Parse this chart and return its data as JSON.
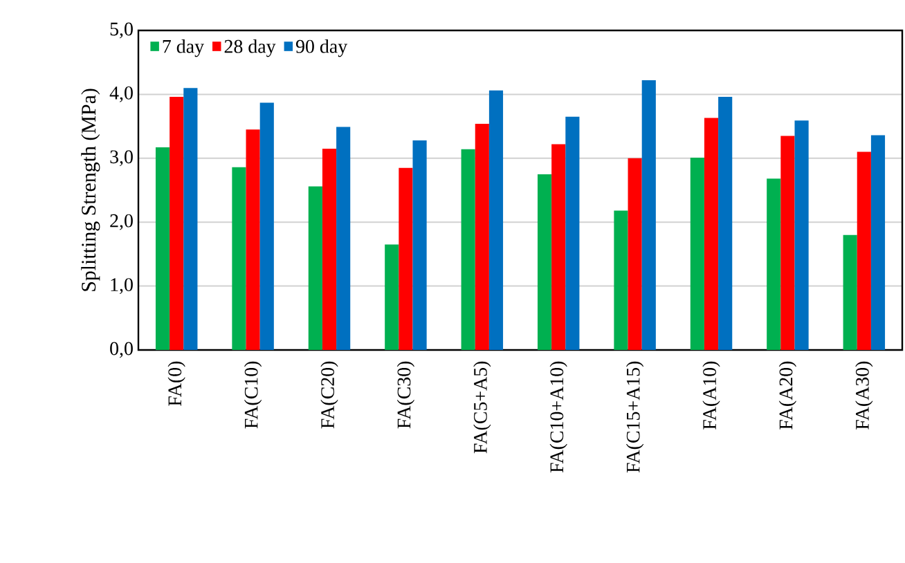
{
  "chart_data": {
    "type": "bar",
    "ylabel": "Splitting Strength  (MPa)",
    "categories": [
      "FA(0)",
      "FA(C10)",
      "FA(C20)",
      "FA(C30)",
      "FA(C5+A5)",
      "FA(C10+A10)",
      "FA(C15+A15)",
      "FA(A10)",
      "FA(A20)",
      "FA(A30)"
    ],
    "series": [
      {
        "name": "7 day",
        "color": "#00b050",
        "values": [
          3.17,
          2.86,
          2.56,
          1.65,
          3.14,
          2.75,
          2.18,
          3.01,
          2.68,
          1.8
        ]
      },
      {
        "name": "28 day",
        "color": "#ff0000",
        "values": [
          3.96,
          3.45,
          3.15,
          2.85,
          3.54,
          3.22,
          3.0,
          3.63,
          3.35,
          3.1
        ]
      },
      {
        "name": "90 day",
        "color": "#0070c0",
        "values": [
          4.1,
          3.87,
          3.49,
          3.28,
          4.06,
          3.65,
          4.22,
          3.96,
          3.59,
          3.36
        ]
      }
    ],
    "ylim": [
      0,
      5
    ],
    "yticks": [
      {
        "value": 0,
        "label": "0,0"
      },
      {
        "value": 1,
        "label": "1,0"
      },
      {
        "value": 2,
        "label": "2,0"
      },
      {
        "value": 3,
        "label": "3,0"
      },
      {
        "value": 4,
        "label": "4,0"
      },
      {
        "value": 5,
        "label": "5,0"
      }
    ],
    "grid": "y",
    "legend": "top left"
  }
}
